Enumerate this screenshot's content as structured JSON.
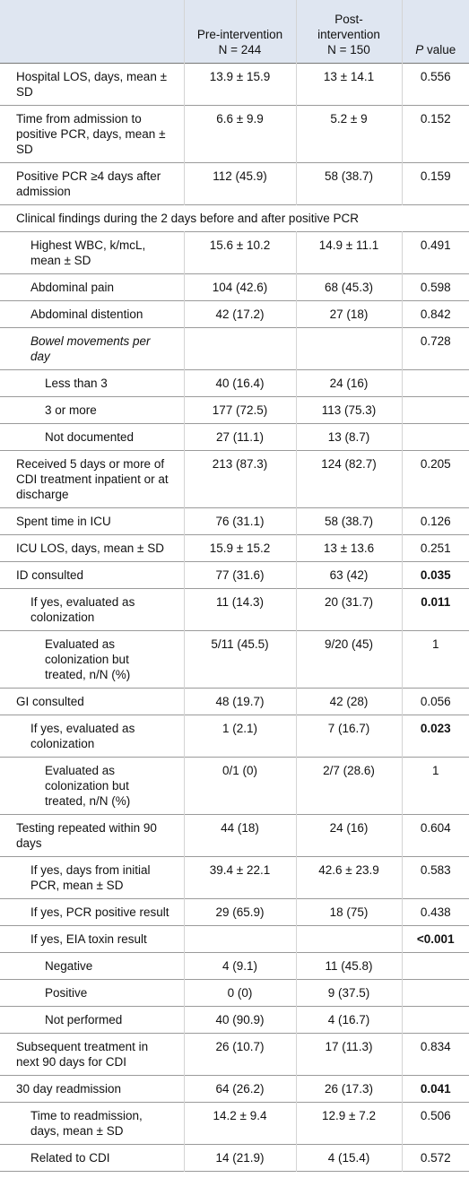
{
  "header": {
    "pre_label": "Pre-intervention",
    "pre_n": "N = 244",
    "post_label": "Post-intervention",
    "post_n": "N = 150",
    "p_italic": "P",
    "p_rest": "value"
  },
  "rows": [
    {
      "label": "Hospital LOS, days, mean ± SD",
      "pre": "13.9 ± 15.9",
      "post": "13 ± 14.1",
      "p": "0.556"
    },
    {
      "label": "Time from admission to positive PCR, days, mean ± SD",
      "pre": "6.6 ± 9.9",
      "post": "5.2 ± 9",
      "p": "0.152"
    },
    {
      "label": "Positive PCR ≥4 days after admission",
      "pre": "112 (45.9)",
      "post": "58 (38.7)",
      "p": "0.159"
    },
    {
      "label": "Clinical findings during the 2 days before and after positive PCR"
    },
    {
      "label": "Highest WBC, k/mcL, mean ± SD",
      "pre": "15.6 ± 10.2",
      "post": "14.9 ± 11.1",
      "p": "0.491"
    },
    {
      "label": "Abdominal pain",
      "pre": "104 (42.6)",
      "post": "68 (45.3)",
      "p": "0.598"
    },
    {
      "label": "Abdominal distention",
      "pre": "42 (17.2)",
      "post": "27 (18)",
      "p": "0.842"
    },
    {
      "label": "Bowel movements per day",
      "p": "0.728"
    },
    {
      "label": "Less than 3",
      "pre": "40 (16.4)",
      "post": "24 (16)"
    },
    {
      "label": "3 or more",
      "pre": "177 (72.5)",
      "post": "113 (75.3)"
    },
    {
      "label": "Not documented",
      "pre": "27 (11.1)",
      "post": "13 (8.7)"
    },
    {
      "label": "Received 5 days or more of CDI treatment inpatient or at discharge",
      "pre": "213 (87.3)",
      "post": "124 (82.7)",
      "p": "0.205"
    },
    {
      "label": "Spent time in ICU",
      "pre": "76 (31.1)",
      "post": "58 (38.7)",
      "p": "0.126"
    },
    {
      "label": "ICU LOS, days, mean ± SD",
      "pre": "15.9 ± 15.2",
      "post": "13 ± 13.6",
      "p": "0.251"
    },
    {
      "label": "ID consulted",
      "pre": "77 (31.6)",
      "post": "63 (42)",
      "p": "0.035"
    },
    {
      "label": "If yes, evaluated as colonization",
      "pre": "11 (14.3)",
      "post": "20 (31.7)",
      "p": "0.011"
    },
    {
      "label": "Evaluated as colonization but treated, n/N (%)",
      "pre": "5/11 (45.5)",
      "post": "9/20 (45)",
      "p": "1"
    },
    {
      "label": "GI consulted",
      "pre": "48 (19.7)",
      "post": "42 (28)",
      "p": "0.056"
    },
    {
      "label": "If yes, evaluated as colonization",
      "pre": "1 (2.1)",
      "post": "7 (16.7)",
      "p": "0.023"
    },
    {
      "label": "Evaluated as colonization but treated, n/N (%)",
      "pre": "0/1 (0)",
      "post": "2/7 (28.6)",
      "p": "1"
    },
    {
      "label": "Testing repeated within 90 days",
      "pre": "44 (18)",
      "post": "24 (16)",
      "p": "0.604"
    },
    {
      "label": "If yes, days from initial PCR, mean ± SD",
      "pre": "39.4 ± 22.1",
      "post": "42.6 ± 23.9",
      "p": "0.583"
    },
    {
      "label": "If yes, PCR positive result",
      "pre": "29 (65.9)",
      "post": "18 (75)",
      "p": "0.438"
    },
    {
      "label": "If yes, EIA toxin result",
      "p": "<0.001"
    },
    {
      "label": "Negative",
      "pre": "4 (9.1)",
      "post": "11 (45.8)"
    },
    {
      "label": "Positive",
      "pre": "0 (0)",
      "post": "9 (37.5)"
    },
    {
      "label": "Not performed",
      "pre": "40 (90.9)",
      "post": "4 (16.7)"
    },
    {
      "label": "Subsequent treatment in next 90 days for CDI",
      "pre": "26 (10.7)",
      "post": "17 (11.3)",
      "p": "0.834"
    },
    {
      "label": "30 day readmission",
      "pre": "64 (26.2)",
      "post": "26 (17.3)",
      "p": "0.041"
    },
    {
      "label": "Time to readmission, days, mean ± SD",
      "pre": "14.2 ± 9.4",
      "post": "12.9 ± 7.2",
      "p": "0.506"
    },
    {
      "label": "Related to CDI",
      "pre": "14 (21.9)",
      "post": "4 (15.4)",
      "p": "0.572"
    }
  ]
}
